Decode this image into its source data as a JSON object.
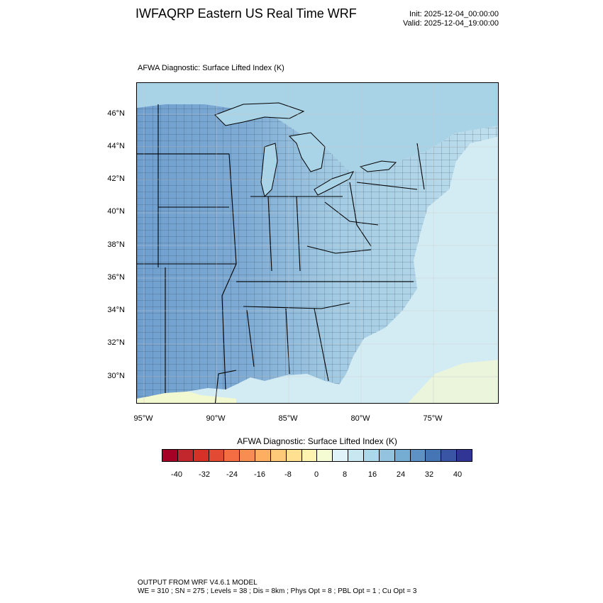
{
  "header": {
    "title": "IWFAQRP Eastern US Real Time WRF",
    "init": "Init: 2025-12-04_00:00:00",
    "valid": "Valid: 2025-12-04_19:00:00"
  },
  "field_title": "AFWA Diagnostic: Surface Lifted Index   (K)",
  "map": {
    "lat_labels": [
      "46°N",
      "44°N",
      "42°N",
      "40°N",
      "38°N",
      "36°N",
      "34°N",
      "32°N",
      "30°N"
    ],
    "lon_labels": [
      "95°W",
      "90°W",
      "85°W",
      "80°W",
      "75°W"
    ],
    "colors": {
      "land_west": "#6f9fcf",
      "land_mid": "#9ec6e0",
      "land_east": "#bfe0ee",
      "ocean": "#d3ecf4",
      "gulf_warm": "#f2f8cf",
      "lakes": "#a9d3e6"
    }
  },
  "colorbar": {
    "title": "AFWA Diagnostic: Surface Lifted Index  (K)",
    "colors": [
      "#a50026",
      "#c1272d",
      "#d73027",
      "#e34a33",
      "#f46d43",
      "#f88d52",
      "#fdae61",
      "#fec979",
      "#fee090",
      "#fff3b0",
      "#f5fbd2",
      "#e0f3f8",
      "#c9e7f1",
      "#abd9e9",
      "#93c3df",
      "#74add1",
      "#5f92c4",
      "#4575b4",
      "#3a55a4",
      "#313695"
    ],
    "labels": [
      "-40",
      "-32",
      "-24",
      "-16",
      "-8",
      "0",
      "8",
      "16",
      "24",
      "32",
      "40"
    ]
  },
  "footer": {
    "line1": "OUTPUT FROM WRF V4.6.1 MODEL",
    "line2": "WE = 310 ; SN = 275 ; Levels = 38 ; Dis = 8km ; Phys Opt = 8 ; PBL Opt = 1 ; Cu Opt = 3"
  }
}
